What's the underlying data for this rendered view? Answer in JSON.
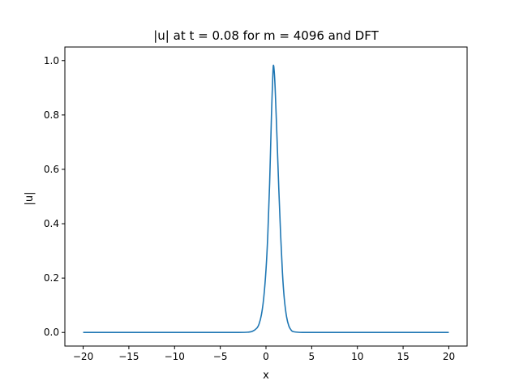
{
  "chart_data": {
    "type": "line",
    "title": "|u| at t = 0.08 for m = 4096 and DFT",
    "xlabel": "x",
    "ylabel": "|u|",
    "xlim": [
      -22,
      22
    ],
    "ylim": [
      -0.05,
      1.05
    ],
    "xticks": [
      -20,
      -15,
      -10,
      -5,
      0,
      5,
      10,
      15,
      20
    ],
    "xtick_labels": [
      "−20",
      "−15",
      "−10",
      "−5",
      "0",
      "5",
      "10",
      "15",
      "20"
    ],
    "yticks": [
      0.0,
      0.2,
      0.4,
      0.6,
      0.8,
      1.0
    ],
    "ytick_labels": [
      "0.0",
      "0.2",
      "0.4",
      "0.6",
      "0.8",
      "1.0"
    ],
    "grid": false,
    "series": [
      {
        "color": "#1f77b4",
        "x": [
          -20,
          -5,
          -3,
          -2,
          -1.5,
          -1,
          -0.75,
          -0.5,
          -0.25,
          0,
          0.2,
          0.4,
          0.6,
          0.7,
          0.8,
          0.9,
          1.0,
          1.2,
          1.4,
          1.6,
          1.8,
          2.0,
          2.25,
          2.5,
          2.75,
          3,
          4,
          6,
          10,
          20
        ],
        "y": [
          0.0,
          0.0,
          0.0,
          0.001,
          0.004,
          0.016,
          0.032,
          0.065,
          0.126,
          0.23,
          0.36,
          0.55,
          0.8,
          0.9,
          0.98,
          0.96,
          0.9,
          0.72,
          0.53,
          0.36,
          0.22,
          0.125,
          0.058,
          0.024,
          0.009,
          0.003,
          0.0,
          0.0,
          0.0,
          0.0
        ]
      }
    ]
  }
}
